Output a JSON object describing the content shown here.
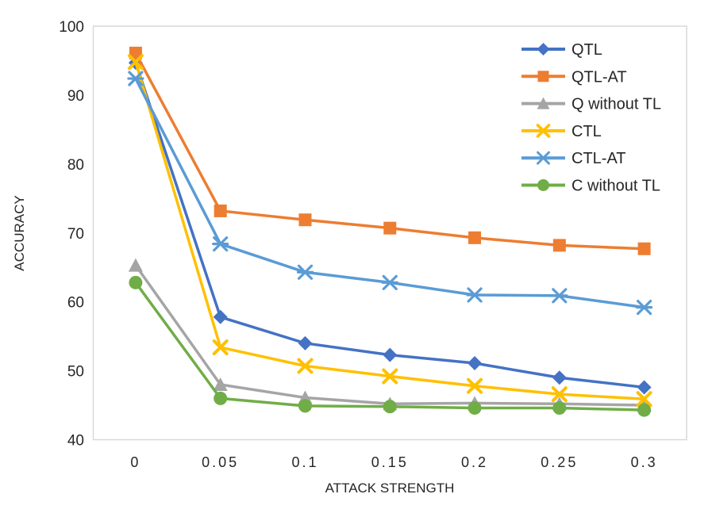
{
  "colors": {
    "plot_border": "#D9D9D9",
    "axis_text": "#262626",
    "background": "#FFFFFF"
  },
  "chart_data": {
    "type": "line",
    "title": "",
    "xlabel": "ATTACK STRENGTH",
    "ylabel": "ACCURACY",
    "x_categories": [
      "0",
      "0.05",
      "0.1",
      "0.15",
      "0.2",
      "0.25",
      "0.3"
    ],
    "x_values": [
      0,
      0.05,
      0.1,
      0.15,
      0.2,
      0.25,
      0.3
    ],
    "ylim": [
      40,
      100
    ],
    "y_ticks": [
      100,
      90,
      80,
      70,
      60,
      50,
      40
    ],
    "grid": false,
    "legend_position": "top-right-inside",
    "series": [
      {
        "name": "QTL",
        "color": "#4472C4",
        "marker": "diamond",
        "values": [
          94.7,
          57.8,
          54.0,
          52.3,
          51.1,
          49.0,
          47.6
        ]
      },
      {
        "name": "QTL-AT",
        "color": "#ED7D31",
        "marker": "square",
        "values": [
          96.1,
          73.2,
          71.9,
          70.7,
          69.3,
          68.2,
          67.7
        ]
      },
      {
        "name": "Q without TL",
        "color": "#A5A5A5",
        "marker": "triangle",
        "values": [
          65.3,
          48.0,
          46.1,
          45.2,
          45.3,
          45.2,
          45.0
        ]
      },
      {
        "name": "CTL",
        "color": "#FFC000",
        "marker": "x",
        "values": [
          94.8,
          53.4,
          50.7,
          49.2,
          47.8,
          46.6,
          45.9
        ]
      },
      {
        "name": "CTL-AT",
        "color": "#5B9BD5",
        "marker": "asterisk",
        "values": [
          92.4,
          68.4,
          64.3,
          62.8,
          61.0,
          60.9,
          59.2
        ]
      },
      {
        "name": "C without TL",
        "color": "#70AD47",
        "marker": "circle",
        "values": [
          62.8,
          46.0,
          44.9,
          44.8,
          44.6,
          44.6,
          44.3
        ]
      }
    ]
  }
}
